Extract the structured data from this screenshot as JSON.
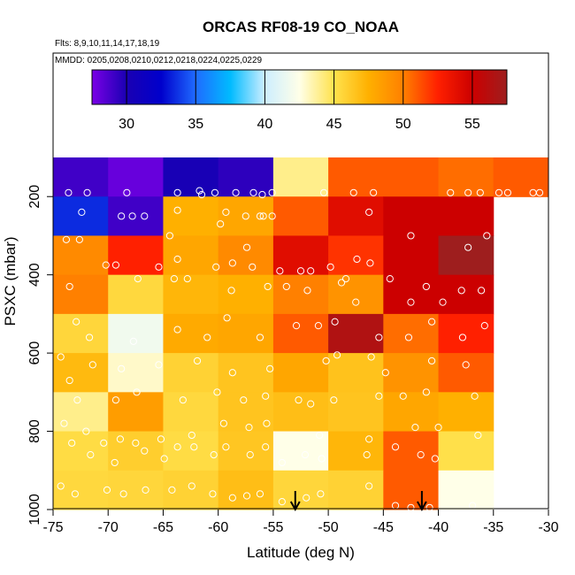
{
  "chart_data": {
    "type": "heatmap",
    "title": "ORCAS RF08-19 CO_NOAA",
    "flights_note": "Flts: 8,9,10,11,14,17,18,19",
    "dates_note": "MMDD: 0205,0208,0210,0212,0218,0224,0225,0229",
    "xlabel": "Latitude (deg N)",
    "ylabel": "PSXC (mbar)",
    "xlim": [
      -75,
      -30
    ],
    "ylim": [
      1000,
      100
    ],
    "x_ticks": [
      -75,
      -70,
      -65,
      -60,
      -55,
      -50,
      -45,
      -40,
      -35,
      -30
    ],
    "y_ticks": [
      200,
      400,
      600,
      800,
      1000
    ],
    "colorbar": {
      "range": [
        27.5,
        57.5
      ],
      "ticks": [
        30,
        35,
        40,
        45,
        50,
        55
      ],
      "colors": [
        "#7a00e6",
        "#1a00b3",
        "#0000cc",
        "#1f6bff",
        "#00bbff",
        "#cdeeff",
        "#ffffe8",
        "#ffe24d",
        "#ffb000",
        "#ff8000",
        "#ff2000",
        "#cc0000",
        "#9e1e1e"
      ]
    },
    "lat_bins": [
      -75,
      -70,
      -65,
      -60,
      -55,
      -50,
      -45,
      -40,
      -35
    ],
    "pressure_bins": [
      100,
      200,
      300,
      400,
      500,
      600,
      700,
      800,
      900,
      1000
    ],
    "values": [
      [
        29.0,
        28.0,
        30.2,
        29.5,
        44.0,
        51.0,
        51.0,
        50.5,
        51.0
      ],
      [
        33.5,
        29.0,
        47.5,
        48.0,
        51.0,
        54.0,
        55.0,
        55.0,
        null
      ],
      [
        49.5,
        52.5,
        48.0,
        49.5,
        54.0,
        52.0,
        55.0,
        58.0,
        null
      ],
      [
        50.0,
        45.5,
        47.2,
        47.5,
        50.0,
        49.0,
        55.0,
        55.0,
        null
      ],
      [
        45.6,
        41.8,
        47.8,
        48.0,
        51.0,
        56.5,
        50.5,
        52.5,
        null
      ],
      [
        47.0,
        43.0,
        45.8,
        46.5,
        48.0,
        46.6,
        49.0,
        51.0,
        null
      ],
      [
        44.0,
        48.5,
        45.5,
        46.5,
        46.8,
        46.5,
        48.0,
        47.5,
        null
      ],
      [
        45.3,
        46.0,
        45.3,
        46.4,
        42.5,
        47.2,
        51.0,
        45.1,
        null
      ],
      [
        45.5,
        45.6,
        45.8,
        46.8,
        45.6,
        45.8,
        51.0,
        42.5,
        null
      ]
    ],
    "arrows_lat": [
      -53.0,
      -41.5
    ],
    "samples": [
      [
        -73.6,
        190
      ],
      [
        -71.9,
        190
      ],
      [
        -68.3,
        190
      ],
      [
        -63.7,
        190
      ],
      [
        -61.7,
        185
      ],
      [
        -61.5,
        195
      ],
      [
        -60.3,
        190
      ],
      [
        -58.4,
        190
      ],
      [
        -56.8,
        190
      ],
      [
        -56.0,
        195
      ],
      [
        -55.1,
        190
      ],
      [
        -50.4,
        190
      ],
      [
        -47.7,
        190
      ],
      [
        -45.9,
        190
      ],
      [
        -38.9,
        190
      ],
      [
        -37.3,
        190
      ],
      [
        -36.2,
        190
      ],
      [
        -34.5,
        190
      ],
      [
        -33.7,
        190
      ],
      [
        -31.4,
        190
      ],
      [
        -30.8,
        190
      ],
      [
        -72.4,
        240
      ],
      [
        -68.8,
        250
      ],
      [
        -67.8,
        250
      ],
      [
        -66.7,
        250
      ],
      [
        -63.7,
        235
      ],
      [
        -59.3,
        240
      ],
      [
        -57.5,
        250
      ],
      [
        -56.2,
        250
      ],
      [
        -55.9,
        250
      ],
      [
        -55.1,
        250
      ],
      [
        -46.3,
        240
      ],
      [
        -73.8,
        310
      ],
      [
        -72.6,
        310
      ],
      [
        -70.2,
        375
      ],
      [
        -69.3,
        375
      ],
      [
        -65.4,
        380
      ],
      [
        -64.4,
        300
      ],
      [
        -63.7,
        360
      ],
      [
        -60.2,
        380
      ],
      [
        -59.8,
        270
      ],
      [
        -58.7,
        370
      ],
      [
        -57.4,
        330
      ],
      [
        -56.9,
        380
      ],
      [
        -54.4,
        390
      ],
      [
        -52.5,
        390
      ],
      [
        -51.6,
        390
      ],
      [
        -49.8,
        380
      ],
      [
        -48.4,
        410
      ],
      [
        -47.4,
        360
      ],
      [
        -46.2,
        370
      ],
      [
        -42.5,
        300
      ],
      [
        -37.3,
        330
      ],
      [
        -35.6,
        300
      ],
      [
        -73.5,
        430
      ],
      [
        -67.3,
        410
      ],
      [
        -64.0,
        410
      ],
      [
        -62.8,
        410
      ],
      [
        -58.8,
        440
      ],
      [
        -55.5,
        430
      ],
      [
        -53.8,
        430
      ],
      [
        -51.9,
        440
      ],
      [
        -48.8,
        420
      ],
      [
        -47.5,
        470
      ],
      [
        -44.4,
        410
      ],
      [
        -42.5,
        470
      ],
      [
        -41.1,
        430
      ],
      [
        -39.6,
        470
      ],
      [
        -37.9,
        440
      ],
      [
        -36.1,
        440
      ],
      [
        -72.9,
        520
      ],
      [
        -71.7,
        560
      ],
      [
        -67.7,
        570
      ],
      [
        -63.7,
        540
      ],
      [
        -61.0,
        560
      ],
      [
        -59.2,
        510
      ],
      [
        -56.2,
        560
      ],
      [
        -52.9,
        530
      ],
      [
        -50.9,
        530
      ],
      [
        -49.4,
        520
      ],
      [
        -45.4,
        560
      ],
      [
        -42.7,
        560
      ],
      [
        -40.6,
        520
      ],
      [
        -37.8,
        560
      ],
      [
        -35.8,
        530
      ],
      [
        -74.3,
        610
      ],
      [
        -71.4,
        630
      ],
      [
        -68.8,
        640
      ],
      [
        -65.4,
        630
      ],
      [
        -61.9,
        620
      ],
      [
        -58.7,
        650
      ],
      [
        -55.3,
        640
      ],
      [
        -50.2,
        620
      ],
      [
        -49.2,
        605
      ],
      [
        -46.1,
        610
      ],
      [
        -44.8,
        650
      ],
      [
        -40.6,
        620
      ],
      [
        -37.5,
        630
      ],
      [
        -73.5,
        670
      ],
      [
        -72.8,
        720
      ],
      [
        -69.3,
        720
      ],
      [
        -67.4,
        700
      ],
      [
        -63.2,
        720
      ],
      [
        -60.1,
        700
      ],
      [
        -57.7,
        720
      ],
      [
        -55.7,
        710
      ],
      [
        -52.7,
        720
      ],
      [
        -51.6,
        730
      ],
      [
        -49.5,
        720
      ],
      [
        -45.4,
        710
      ],
      [
        -43.2,
        710
      ],
      [
        -41.1,
        700
      ],
      [
        -36.7,
        710
      ],
      [
        -74.0,
        780
      ],
      [
        -73.3,
        830
      ],
      [
        -72.0,
        800
      ],
      [
        -70.4,
        830
      ],
      [
        -68.9,
        820
      ],
      [
        -67.5,
        830
      ],
      [
        -65.2,
        820
      ],
      [
        -62.4,
        810
      ],
      [
        -59.5,
        780
      ],
      [
        -57.2,
        790
      ],
      [
        -55.6,
        780
      ],
      [
        -50.8,
        810
      ],
      [
        -46.3,
        820
      ],
      [
        -42.1,
        790
      ],
      [
        -40.0,
        790
      ],
      [
        -36.4,
        810
      ],
      [
        -71.6,
        860
      ],
      [
        -69.4,
        880
      ],
      [
        -66.7,
        850
      ],
      [
        -64.9,
        870
      ],
      [
        -63.7,
        840
      ],
      [
        -62.2,
        840
      ],
      [
        -60.4,
        860
      ],
      [
        -59.3,
        840
      ],
      [
        -57.1,
        860
      ],
      [
        -55.7,
        840
      ],
      [
        -54.2,
        880
      ],
      [
        -52.1,
        860
      ],
      [
        -50.6,
        870
      ],
      [
        -46.5,
        860
      ],
      [
        -43.9,
        840
      ],
      [
        -41.6,
        860
      ],
      [
        -40.3,
        870
      ],
      [
        -74.3,
        940
      ],
      [
        -73.0,
        960
      ],
      [
        -70.1,
        950
      ],
      [
        -68.6,
        960
      ],
      [
        -66.6,
        950
      ],
      [
        -64.2,
        950
      ],
      [
        -62.4,
        940
      ],
      [
        -60.5,
        960
      ],
      [
        -58.7,
        970
      ],
      [
        -57.4,
        965
      ],
      [
        -56.2,
        960
      ],
      [
        -54.2,
        980
      ],
      [
        -52.0,
        970
      ],
      [
        -50.7,
        960
      ],
      [
        -46.3,
        940
      ],
      [
        -43.9,
        990
      ],
      [
        -42.5,
        995
      ],
      [
        -40.8,
        995
      ],
      [
        -36.9,
        990
      ]
    ]
  }
}
